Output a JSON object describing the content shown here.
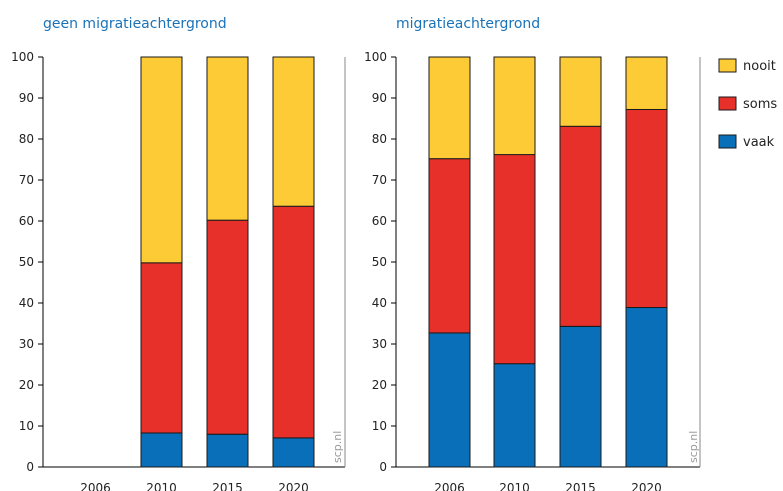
{
  "chart_data": [
    {
      "type": "bar",
      "stacked": true,
      "title": "geen migratieachtergrond",
      "categories": [
        "2006",
        "2010",
        "2015",
        "2020"
      ],
      "series": [
        {
          "name": "vaak",
          "values": [
            0,
            8.3,
            8.0,
            7.1
          ]
        },
        {
          "name": "soms",
          "values": [
            0,
            41.5,
            52.2,
            56.5
          ]
        },
        {
          "name": "nooit",
          "values": [
            0,
            50.2,
            39.8,
            36.4
          ]
        }
      ],
      "ylim": [
        0,
        100
      ],
      "yticks": [
        "0",
        "10",
        "20",
        "30",
        "40",
        "50",
        "60",
        "70",
        "80",
        "90",
        "100"
      ],
      "watermark": "scp.nl",
      "grid": false
    },
    {
      "type": "bar",
      "stacked": true,
      "title": "migratieachtergrond",
      "categories": [
        "2006",
        "2010",
        "2015",
        "2020"
      ],
      "series": [
        {
          "name": "vaak",
          "values": [
            32.7,
            25.2,
            34.3,
            38.9
          ]
        },
        {
          "name": "soms",
          "values": [
            42.5,
            51.0,
            48.8,
            48.3
          ]
        },
        {
          "name": "nooit",
          "values": [
            24.8,
            23.8,
            16.9,
            12.8
          ]
        }
      ],
      "ylim": [
        0,
        100
      ],
      "yticks": [
        "0",
        "10",
        "20",
        "30",
        "40",
        "50",
        "60",
        "70",
        "80",
        "90",
        "100"
      ],
      "watermark": "scp.nl",
      "grid": false
    }
  ],
  "legend": {
    "placement": "right",
    "items": [
      {
        "label": "nooit",
        "color": "#fccb35"
      },
      {
        "label": "soms",
        "color": "#e8302a"
      },
      {
        "label": "vaak",
        "color": "#0a6fb9"
      }
    ]
  },
  "colors": {
    "vaak": "#0a6fb9",
    "soms": "#e8302a",
    "nooit": "#fccb35",
    "title": "#1a73b8"
  }
}
